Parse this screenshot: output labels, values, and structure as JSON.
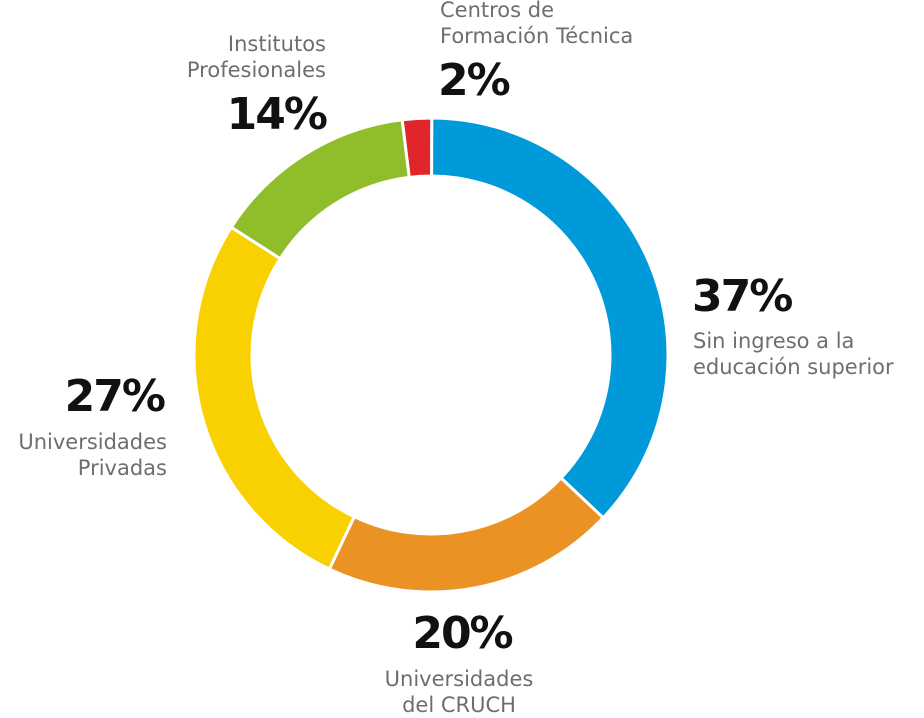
{
  "chart_data": {
    "type": "donut",
    "slices": [
      {
        "label_lines": [
          "Centros de",
          "Formación Técnica"
        ],
        "value": 2,
        "value_label": "2%",
        "color": "#E1262B"
      },
      {
        "label_lines": [
          "Sin ingreso a la",
          "educación superior"
        ],
        "value": 37,
        "value_label": "37%",
        "color": "#009ADA"
      },
      {
        "label_lines": [
          "Universidades",
          "del CRUCH"
        ],
        "value": 20,
        "value_label": "20%",
        "color": "#EB9224"
      },
      {
        "label_lines": [
          "Universidades",
          "Privadas"
        ],
        "value": 27,
        "value_label": "27%",
        "color": "#F9D000"
      },
      {
        "label_lines": [
          "Institutos",
          "Profesionales"
        ],
        "value": 14,
        "value_label": "14%",
        "color": "#8FBE2A"
      }
    ]
  }
}
